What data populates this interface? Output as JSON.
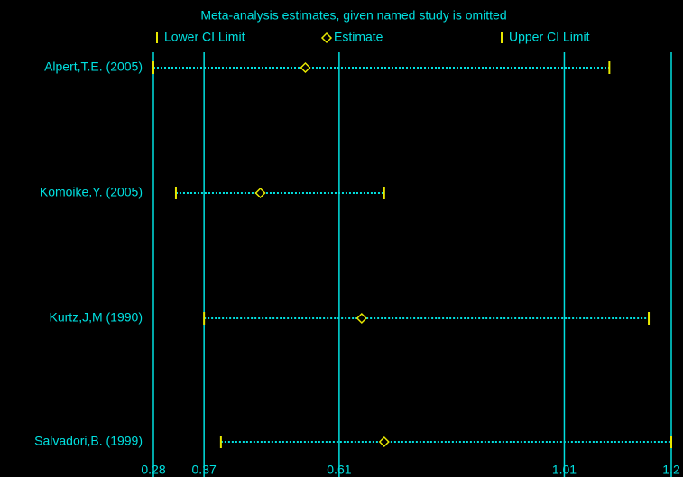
{
  "chart_data": {
    "type": "forest",
    "title": "Meta-analysis estimates, given named study is omitted",
    "categories": [
      "Alpert,T.E. (2005)",
      "Komoike,Y. (2005)",
      "Kurtz,J,M (1990)",
      "Salvadori,B. (1999)"
    ],
    "series": [
      {
        "name": "Lower CI Limit",
        "color": "#e8e800",
        "values": [
          0.28,
          0.32,
          0.37,
          0.4
        ]
      },
      {
        "name": "Estimate",
        "color": "#e8e800",
        "values": [
          0.55,
          0.47,
          0.65,
          0.69
        ]
      },
      {
        "name": "Upper CI Limit",
        "color": "#e8e800",
        "values": [
          1.09,
          0.69,
          1.16,
          1.2
        ]
      }
    ],
    "line_color": "#00e0e0",
    "xlim": [
      0.28,
      1.2
    ],
    "xticks": [
      0.28,
      0.37,
      0.61,
      1.01,
      1.2
    ],
    "grid": true
  }
}
